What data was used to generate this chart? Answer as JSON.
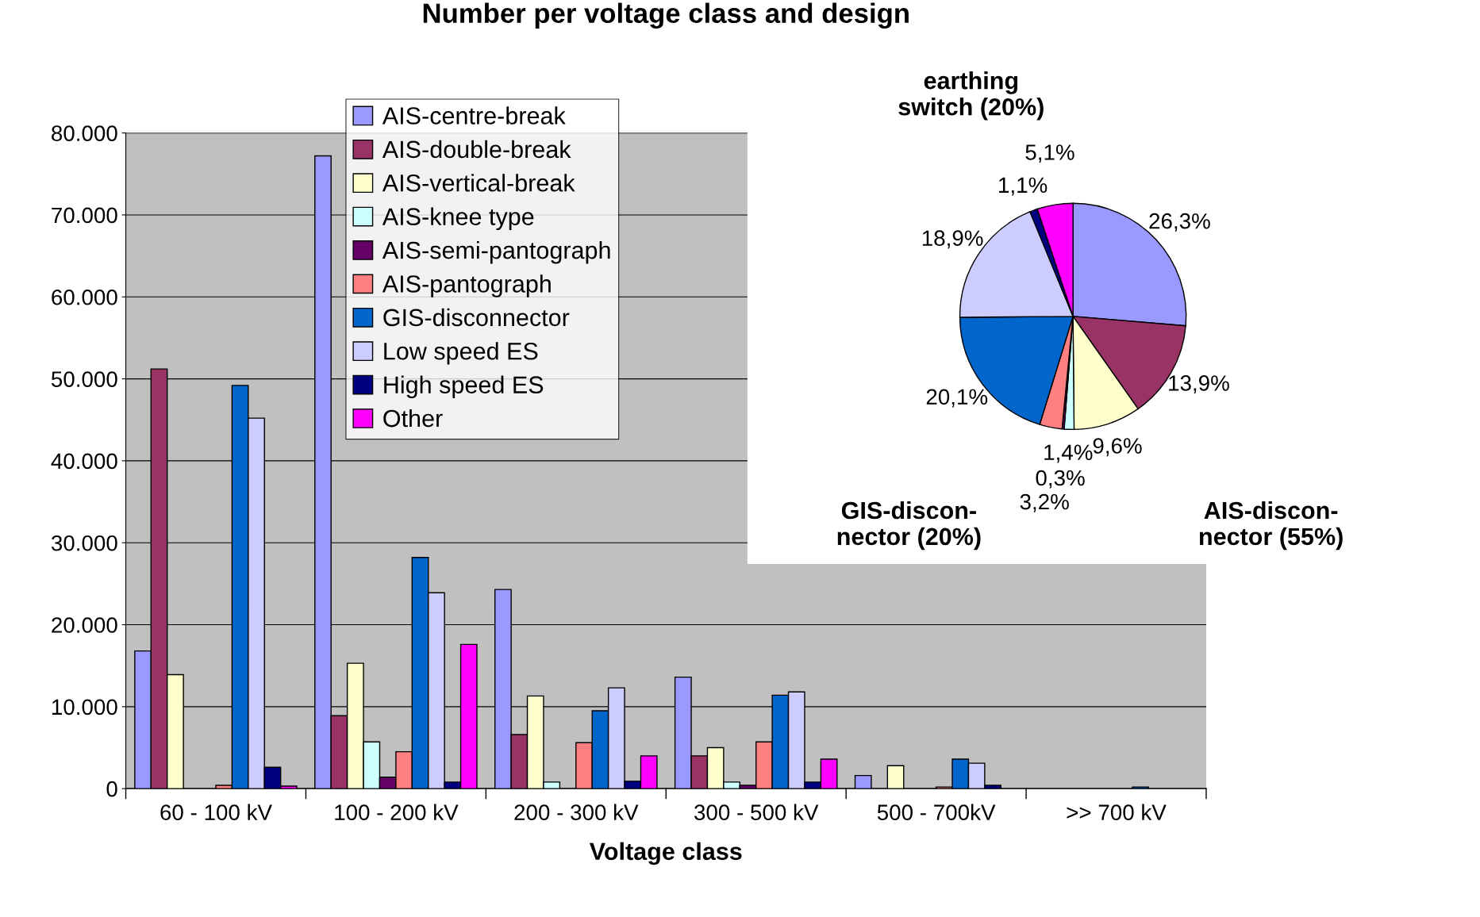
{
  "chart_data": [
    {
      "type": "bar",
      "title": "Number per voltage class and design",
      "xlabel": "Voltage class",
      "categories": [
        "60 - 100 kV",
        "100 - 200 kV",
        "200 - 300 kV",
        "300 - 500 kV",
        "500 - 700kV",
        ">> 700 kV"
      ],
      "series": [
        {
          "name": "AIS-centre-break",
          "color": "#9999ff",
          "values": [
            16800,
            77200,
            24300,
            13600,
            1600,
            null
          ]
        },
        {
          "name": "AIS-double-break",
          "color": "#993366",
          "values": [
            51200,
            8900,
            6600,
            4000,
            null,
            null
          ]
        },
        {
          "name": "AIS-vertical-break",
          "color": "#ffffcc",
          "values": [
            13900,
            15300,
            11300,
            5000,
            2800,
            null
          ]
        },
        {
          "name": "AIS-knee type",
          "color": "#ccffff",
          "values": [
            null,
            5700,
            800,
            800,
            null,
            null
          ]
        },
        {
          "name": "AIS-semi-pantograph",
          "color": "#660066",
          "values": [
            null,
            1400,
            null,
            400,
            null,
            null
          ]
        },
        {
          "name": "AIS-pantograph",
          "color": "#ff8080",
          "values": [
            400,
            4500,
            5600,
            5700,
            200,
            null
          ]
        },
        {
          "name": "GIS-disconnector",
          "color": "#0066cc",
          "values": [
            49200,
            28200,
            9500,
            11400,
            3600,
            200
          ]
        },
        {
          "name": "Low speed ES",
          "color": "#ccccff",
          "values": [
            45200,
            23900,
            12300,
            11800,
            3100,
            null
          ]
        },
        {
          "name": "High speed ES",
          "color": "#000080",
          "values": [
            2600,
            800,
            900,
            800,
            400,
            null
          ]
        },
        {
          "name": "Other",
          "color": "#ff00ff",
          "values": [
            300,
            17600,
            4000,
            3600,
            null,
            null
          ]
        }
      ],
      "ylim": [
        0,
        80000
      ],
      "yticks": [
        0,
        {
          "value": 10000,
          "label": "10.000"
        },
        {
          "value": 20000,
          "label": "20.000"
        },
        {
          "value": 30000,
          "label": "30.000"
        },
        {
          "value": 40000,
          "label": "40.000"
        },
        {
          "value": 50000,
          "label": "50.000"
        },
        {
          "value": 60000,
          "label": "60.000"
        },
        {
          "value": 70000,
          "label": "70.000"
        },
        {
          "value": 80000,
          "label": "80.000"
        }
      ],
      "grid": "y",
      "legend": "top"
    },
    {
      "type": "pie",
      "categories": [
        null,
        null,
        null,
        null,
        null,
        null,
        null,
        null,
        null,
        null
      ],
      "values": [
        26.3,
        13.9,
        9.6,
        1.4,
        0.3,
        3.2,
        20.1,
        18.9,
        1.1,
        5.1
      ],
      "value_labels": [
        "26,3%",
        "13,9%",
        "9,6%",
        "1,4%",
        "0,3%",
        "3,2%",
        "20,1%",
        "18,9%",
        "1,1%",
        "5,1%"
      ],
      "colors": [
        "#9999ff",
        "#993366",
        "#ffffcc",
        "#ccffff",
        "#660066",
        "#ff8080",
        "#0066cc",
        "#ccccff",
        "#000080",
        "#ff00ff"
      ],
      "annotations": [
        "AIS-discon-\nnector (55%)",
        "GIS-discon-\nnector (20%)",
        "earthing\nswitch (20%)"
      ]
    }
  ]
}
